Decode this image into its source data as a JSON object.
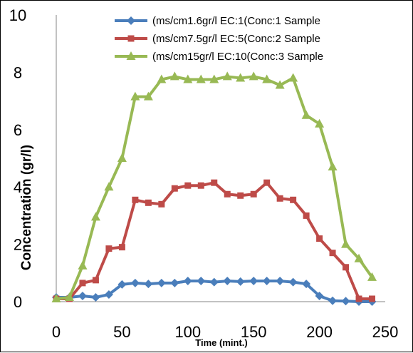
{
  "chart_data": {
    "type": "line",
    "title": "",
    "xlabel": "Time (mint.)",
    "ylabel": "Concentration (gr/l)",
    "xlim": [
      0,
      250
    ],
    "ylim": [
      0,
      10
    ],
    "x_ticks": [
      0,
      50,
      100,
      150,
      200,
      250
    ],
    "y_ticks": [
      0,
      2,
      4,
      6,
      8,
      10
    ],
    "grid": false,
    "legend_position": "top-right",
    "series": [
      {
        "name": "(ms/cm1.6gr/l EC:1(Conc:1 Sample",
        "color": "#4a7ebb",
        "marker": "diamond",
        "x": [
          0,
          10,
          20,
          30,
          40,
          50,
          60,
          70,
          80,
          90,
          100,
          110,
          120,
          130,
          140,
          150,
          160,
          170,
          180,
          190,
          200,
          210,
          220,
          230,
          240
        ],
        "y": [
          0.15,
          0.15,
          0.2,
          0.15,
          0.25,
          0.6,
          0.65,
          0.62,
          0.65,
          0.65,
          0.72,
          0.72,
          0.68,
          0.72,
          0.7,
          0.72,
          0.72,
          0.72,
          0.68,
          0.62,
          0.2,
          0.03,
          0.02,
          0.0,
          0.0
        ]
      },
      {
        "name": "(ms/cm7.5gr/l EC:5(Conc:2 Sample",
        "color": "#be4b48",
        "marker": "square",
        "x": [
          0,
          10,
          20,
          30,
          40,
          50,
          60,
          70,
          80,
          90,
          100,
          110,
          120,
          130,
          140,
          150,
          160,
          170,
          180,
          190,
          200,
          210,
          220,
          230,
          240
        ],
        "y": [
          0.1,
          0.1,
          0.65,
          0.75,
          1.85,
          1.9,
          3.55,
          3.45,
          3.4,
          3.95,
          4.05,
          4.05,
          4.15,
          3.75,
          3.7,
          3.75,
          4.15,
          3.6,
          3.55,
          3.0,
          2.2,
          1.7,
          1.2,
          0.1,
          0.1
        ]
      },
      {
        "name": "(ms/cm15gr/l EC:10(Conc:3 Sample",
        "color": "#98b954",
        "marker": "triangle",
        "x": [
          0,
          10,
          20,
          30,
          40,
          50,
          60,
          70,
          80,
          90,
          100,
          110,
          120,
          130,
          140,
          150,
          160,
          170,
          180,
          190,
          200,
          210,
          220,
          230,
          240
        ],
        "y": [
          0.1,
          0.15,
          1.25,
          2.95,
          4.0,
          5.0,
          7.15,
          7.15,
          7.75,
          7.85,
          7.75,
          7.75,
          7.75,
          7.85,
          7.8,
          7.85,
          7.75,
          7.55,
          7.8,
          6.5,
          6.2,
          4.7,
          2.0,
          1.5,
          0.85
        ]
      }
    ]
  }
}
